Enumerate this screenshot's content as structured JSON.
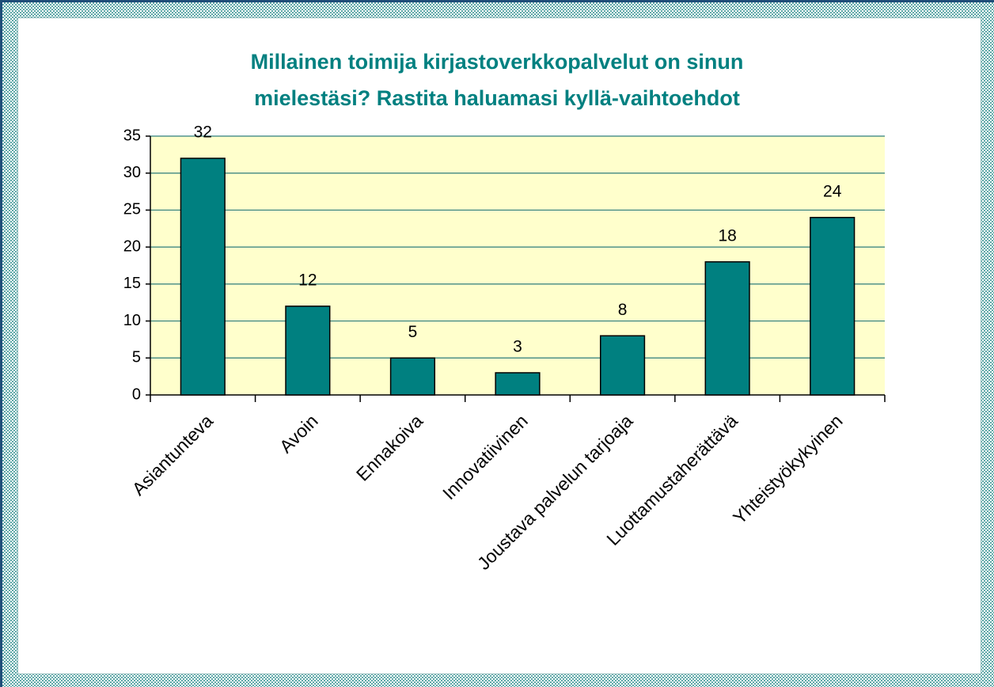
{
  "chart_data": {
    "type": "bar",
    "title": [
      "Millainen toimija kirjastoverkkopalvelut on sinun",
      "mielestäsi? Rastita haluamasi kyllä-vaihtoehdot"
    ],
    "categories": [
      "Asiantunteva",
      "Avoin",
      "Ennakoiva",
      "Innovatiivinen",
      "Joustava palvelun tarjoaja",
      "Luottamustaherättävä",
      "Yhteistyökykyinen"
    ],
    "values": [
      32,
      12,
      5,
      3,
      8,
      18,
      24
    ],
    "color": "#008080",
    "ylim": [
      0,
      35
    ],
    "yticks": [
      0,
      5,
      10,
      15,
      20,
      25,
      30,
      35
    ],
    "grid": true
  }
}
